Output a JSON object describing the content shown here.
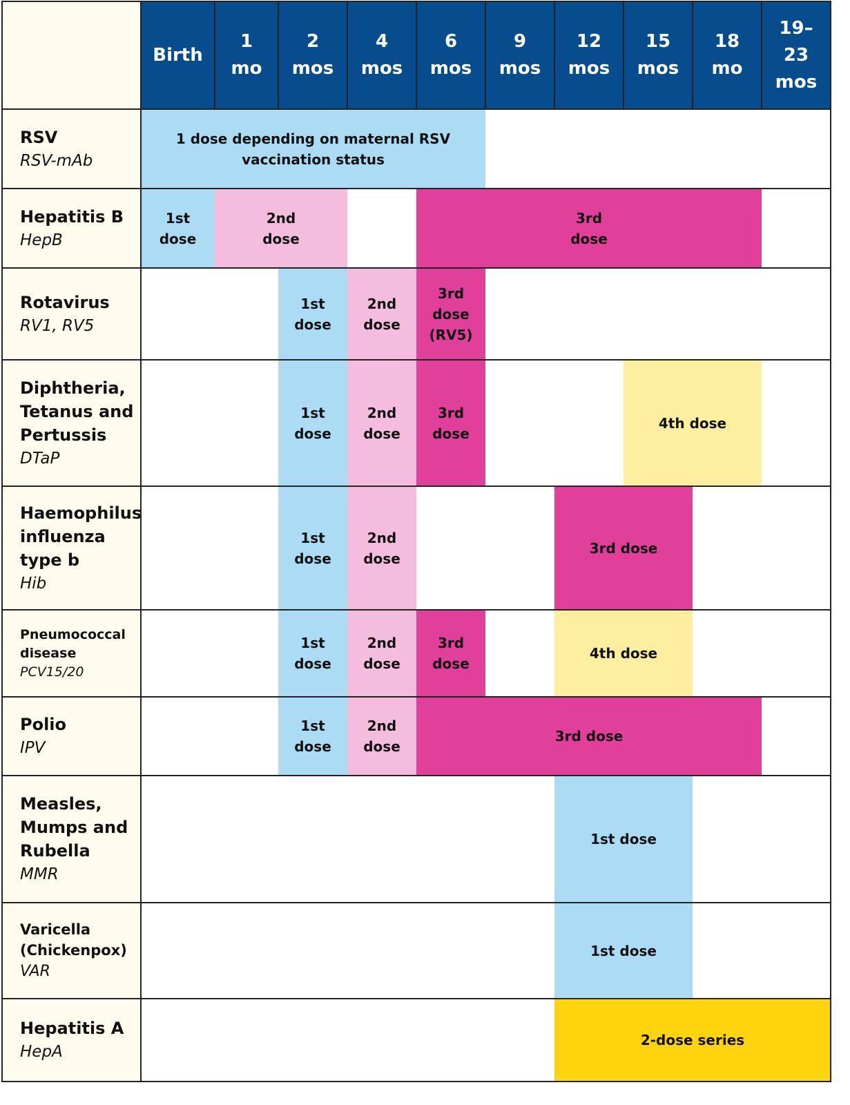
{
  "colors": {
    "header_bg": "#074c8c",
    "label_bg": "#fefcee",
    "light_blue": "#abdcf3",
    "light_pink": "#f4bddd",
    "magenta": "#e1409a",
    "light_yellow": "#feeea0",
    "yellow": "#fed40f"
  },
  "columns": [
    "Birth",
    "1\nmo",
    "2\nmos",
    "4\nmos",
    "6\nmos",
    "9\nmos",
    "12\nmos",
    "15\nmos",
    "18\nmo",
    "19–\n23\nmos"
  ],
  "vaccines": [
    {
      "name": "RSV",
      "abbr": "RSV-mAb",
      "doses": [
        {
          "text": "1 dose depending on maternal RSV\nvaccination status",
          "start_col": 0,
          "end_col": 5,
          "color": "light_blue"
        }
      ]
    },
    {
      "name": "Hepatitis B",
      "abbr": "HepB",
      "doses": [
        {
          "text": "1st\ndose",
          "start_col": 0,
          "end_col": 1,
          "color": "light_blue"
        },
        {
          "text": "2nd\ndose",
          "start_col": 1,
          "end_col": 3,
          "color": "light_pink"
        },
        {
          "text": "3rd\ndose",
          "start_col": 4,
          "end_col": 9,
          "color": "magenta"
        }
      ]
    },
    {
      "name": "Rotavirus",
      "abbr": "RV1, RV5",
      "doses": [
        {
          "text": "1st\ndose",
          "start_col": 2,
          "end_col": 3,
          "color": "light_blue"
        },
        {
          "text": "2nd\ndose",
          "start_col": 3,
          "end_col": 4,
          "color": "light_pink"
        },
        {
          "text": "3rd\ndose\n(RV5)",
          "start_col": 4,
          "end_col": 5,
          "color": "magenta"
        }
      ]
    },
    {
      "name": "Diphtheria,\nTetanus and\nPertussis",
      "abbr": "DTaP",
      "doses": [
        {
          "text": "1st\ndose",
          "start_col": 2,
          "end_col": 3,
          "color": "light_blue"
        },
        {
          "text": "2nd\ndose",
          "start_col": 3,
          "end_col": 4,
          "color": "light_pink"
        },
        {
          "text": "3rd\ndose",
          "start_col": 4,
          "end_col": 5,
          "color": "magenta"
        },
        {
          "text": "4th dose",
          "start_col": 7,
          "end_col": 9,
          "color": "light_yellow"
        }
      ]
    },
    {
      "name": "Haemophilus\ninfluenza\ntype b",
      "abbr": "Hib",
      "doses": [
        {
          "text": "1st\ndose",
          "start_col": 2,
          "end_col": 3,
          "color": "light_blue"
        },
        {
          "text": "2nd\ndose",
          "start_col": 3,
          "end_col": 4,
          "color": "light_pink"
        },
        {
          "text": "3rd dose",
          "start_col": 6,
          "end_col": 8,
          "color": "magenta"
        }
      ]
    },
    {
      "name": "Pneumococcal\ndisease",
      "abbr": "PCV15/20",
      "doses": [
        {
          "text": "1st\ndose",
          "start_col": 2,
          "end_col": 3,
          "color": "light_blue"
        },
        {
          "text": "2nd\ndose",
          "start_col": 3,
          "end_col": 4,
          "color": "light_pink"
        },
        {
          "text": "3rd\ndose",
          "start_col": 4,
          "end_col": 5,
          "color": "magenta"
        },
        {
          "text": "4th dose",
          "start_col": 6,
          "end_col": 8,
          "color": "light_yellow"
        }
      ]
    },
    {
      "name": "Polio",
      "abbr": "IPV",
      "doses": [
        {
          "text": "1st\ndose",
          "start_col": 2,
          "end_col": 3,
          "color": "light_blue"
        },
        {
          "text": "2nd\ndose",
          "start_col": 3,
          "end_col": 4,
          "color": "light_pink"
        },
        {
          "text": "3rd dose",
          "start_col": 4,
          "end_col": 9,
          "color": "magenta"
        }
      ]
    },
    {
      "name": "Measles,\nMumps and\nRubella",
      "abbr": "MMR",
      "doses": [
        {
          "text": "1st dose",
          "start_col": 6,
          "end_col": 8,
          "color": "light_blue"
        }
      ]
    },
    {
      "name": "Varicella\n(Chickenpox)",
      "abbr": "VAR",
      "doses": [
        {
          "text": "1st dose",
          "start_col": 6,
          "end_col": 8,
          "color": "light_blue"
        }
      ]
    },
    {
      "name": "Hepatitis A",
      "abbr": "HepA",
      "doses": [
        {
          "text": "2-dose series",
          "start_col": 6,
          "end_col": 10,
          "color": "yellow"
        }
      ]
    }
  ]
}
